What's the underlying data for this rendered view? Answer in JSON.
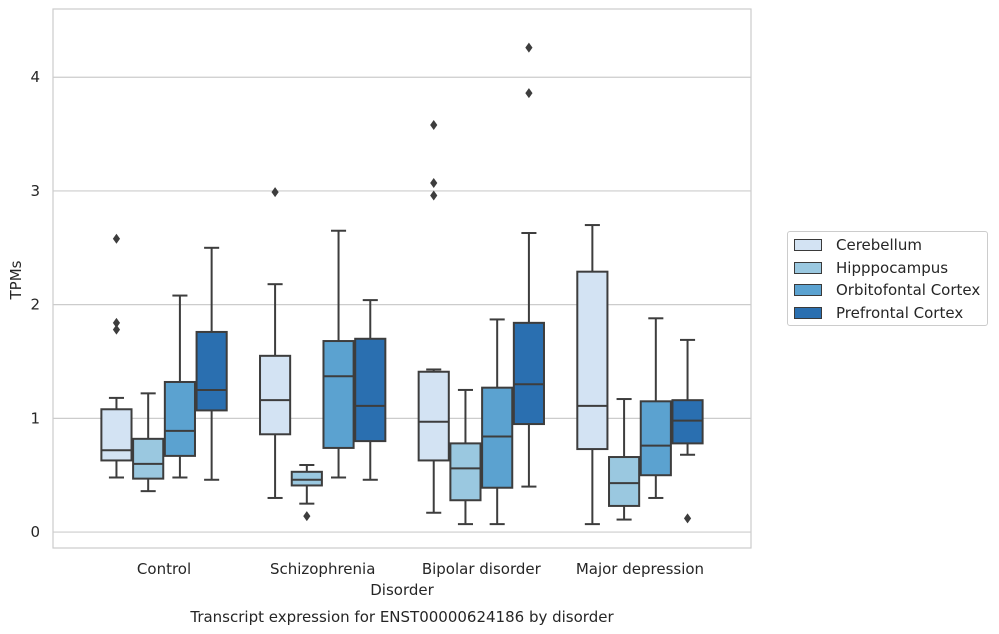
{
  "chart_data": {
    "type": "box",
    "title": "Transcript expression for ENST00000624186 by disorder",
    "xlabel": "Disorder",
    "ylabel": "TPMs",
    "categories": [
      "Control",
      "Schizophrenia",
      "Bipolar disorder",
      "Major depression"
    ],
    "ylim": [
      -0.14,
      4.6
    ],
    "yticks": [
      "0",
      "1",
      "2",
      "3",
      "4"
    ],
    "grid": "horizontal",
    "legend_position": "right",
    "series": [
      {
        "name": "Cerebellum",
        "color": "#d3e3f3",
        "boxes": [
          {
            "whisker_low": 0.48,
            "q1": 0.63,
            "median": 0.72,
            "q3": 1.08,
            "whisker_high": 1.18,
            "outliers": [
              2.58,
              1.84,
              1.78
            ]
          },
          {
            "whisker_low": 0.3,
            "q1": 0.86,
            "median": 1.16,
            "q3": 1.55,
            "whisker_high": 2.18,
            "outliers": [
              2.99
            ]
          },
          {
            "whisker_low": 0.17,
            "q1": 0.63,
            "median": 0.97,
            "q3": 1.41,
            "whisker_high": 1.43,
            "outliers": [
              3.58,
              3.07,
              2.96
            ]
          },
          {
            "whisker_low": 0.07,
            "q1": 0.73,
            "median": 1.11,
            "q3": 2.29,
            "whisker_high": 2.7,
            "outliers": []
          }
        ]
      },
      {
        "name": "Hipppocampus",
        "color": "#9ac8e0",
        "boxes": [
          {
            "whisker_low": 0.36,
            "q1": 0.47,
            "median": 0.6,
            "q3": 0.82,
            "whisker_high": 1.22,
            "outliers": []
          },
          {
            "whisker_low": 0.25,
            "q1": 0.41,
            "median": 0.46,
            "q3": 0.53,
            "whisker_high": 0.59,
            "outliers": [
              0.14
            ]
          },
          {
            "whisker_low": 0.07,
            "q1": 0.28,
            "median": 0.56,
            "q3": 0.78,
            "whisker_high": 1.25,
            "outliers": []
          },
          {
            "whisker_low": 0.11,
            "q1": 0.23,
            "median": 0.43,
            "q3": 0.66,
            "whisker_high": 1.17,
            "outliers": []
          }
        ]
      },
      {
        "name": "Orbitofontal Cortex",
        "color": "#5ba2d0",
        "boxes": [
          {
            "whisker_low": 0.48,
            "q1": 0.67,
            "median": 0.89,
            "q3": 1.32,
            "whisker_high": 2.08,
            "outliers": []
          },
          {
            "whisker_low": 0.48,
            "q1": 0.74,
            "median": 1.37,
            "q3": 1.68,
            "whisker_high": 2.65,
            "outliers": []
          },
          {
            "whisker_low": 0.07,
            "q1": 0.39,
            "median": 0.84,
            "q3": 1.27,
            "whisker_high": 1.87,
            "outliers": []
          },
          {
            "whisker_low": 0.3,
            "q1": 0.5,
            "median": 0.76,
            "q3": 1.15,
            "whisker_high": 1.88,
            "outliers": []
          }
        ]
      },
      {
        "name": "Prefrontal Cortex",
        "color": "#2a6fb0",
        "boxes": [
          {
            "whisker_low": 0.46,
            "q1": 1.07,
            "median": 1.25,
            "q3": 1.76,
            "whisker_high": 2.5,
            "outliers": []
          },
          {
            "whisker_low": 0.46,
            "q1": 0.8,
            "median": 1.11,
            "q3": 1.7,
            "whisker_high": 2.04,
            "outliers": []
          },
          {
            "whisker_low": 0.4,
            "q1": 0.95,
            "median": 1.3,
            "q3": 1.84,
            "whisker_high": 2.63,
            "outliers": [
              4.26,
              3.86
            ]
          },
          {
            "whisker_low": 0.68,
            "q1": 0.78,
            "median": 0.98,
            "q3": 1.16,
            "whisker_high": 1.69,
            "outliers": [
              0.12
            ]
          }
        ]
      }
    ]
  }
}
